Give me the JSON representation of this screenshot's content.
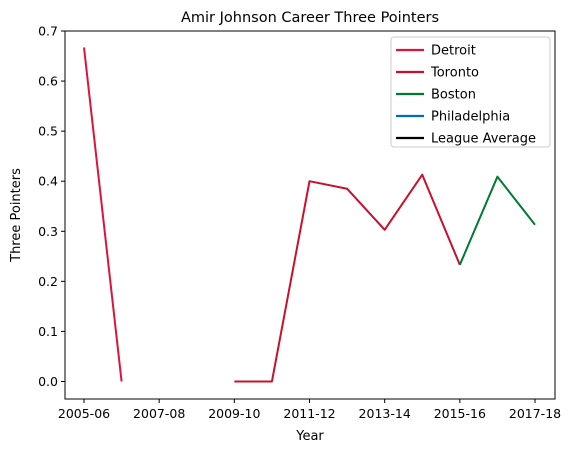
{
  "chart_data": {
    "type": "line",
    "title": "Amir Johnson Career Three Pointers",
    "xlabel": "Year",
    "ylabel": "Three Pointers",
    "x_categories": [
      "2005-06",
      "2006-07",
      "2007-08",
      "2008-09",
      "2009-10",
      "2010-11",
      "2011-12",
      "2012-13",
      "2013-14",
      "2014-15",
      "2015-16",
      "2016-17",
      "2017-18"
    ],
    "x_tick_labels": [
      "2005-06",
      "2007-08",
      "2009-10",
      "2011-12",
      "2013-14",
      "2015-16",
      "2017-18"
    ],
    "ylim": [
      -0.035,
      0.7
    ],
    "y_ticks": [
      "0.0",
      "0.1",
      "0.2",
      "0.3",
      "0.4",
      "0.5",
      "0.6",
      "0.7"
    ],
    "legend_position": "top-right",
    "legend": [
      {
        "name": "Detroit",
        "color": "#dc143c"
      },
      {
        "name": "Toronto",
        "color": "#c8102e"
      },
      {
        "name": "Boston",
        "color": "#007a33"
      },
      {
        "name": "Philadelphia",
        "color": "#006bb6"
      },
      {
        "name": "League Average",
        "color": "#000000"
      }
    ],
    "series": [
      {
        "name": "Detroit",
        "color": "#dc143c",
        "points": [
          [
            "2005-06",
            0.667
          ],
          [
            "2006-07",
            0.0
          ]
        ]
      },
      {
        "name": "Toronto",
        "color": "#c8102e",
        "points": [
          [
            "2009-10",
            0.0
          ],
          [
            "2010-11",
            0.0
          ],
          [
            "2011-12",
            0.4
          ],
          [
            "2012-13",
            0.385
          ],
          [
            "2013-14",
            0.303
          ],
          [
            "2014-15",
            0.413
          ],
          [
            "2015-16",
            0.233
          ]
        ]
      },
      {
        "name": "Boston",
        "color": "#007a33",
        "points": [
          [
            "2015-16",
            0.233
          ],
          [
            "2016-17",
            0.409
          ],
          [
            "2017-18",
            0.313
          ]
        ]
      },
      {
        "name": "Philadelphia",
        "color": "#006bb6",
        "points": []
      },
      {
        "name": "League Average",
        "color": "#000000",
        "points": []
      }
    ]
  }
}
